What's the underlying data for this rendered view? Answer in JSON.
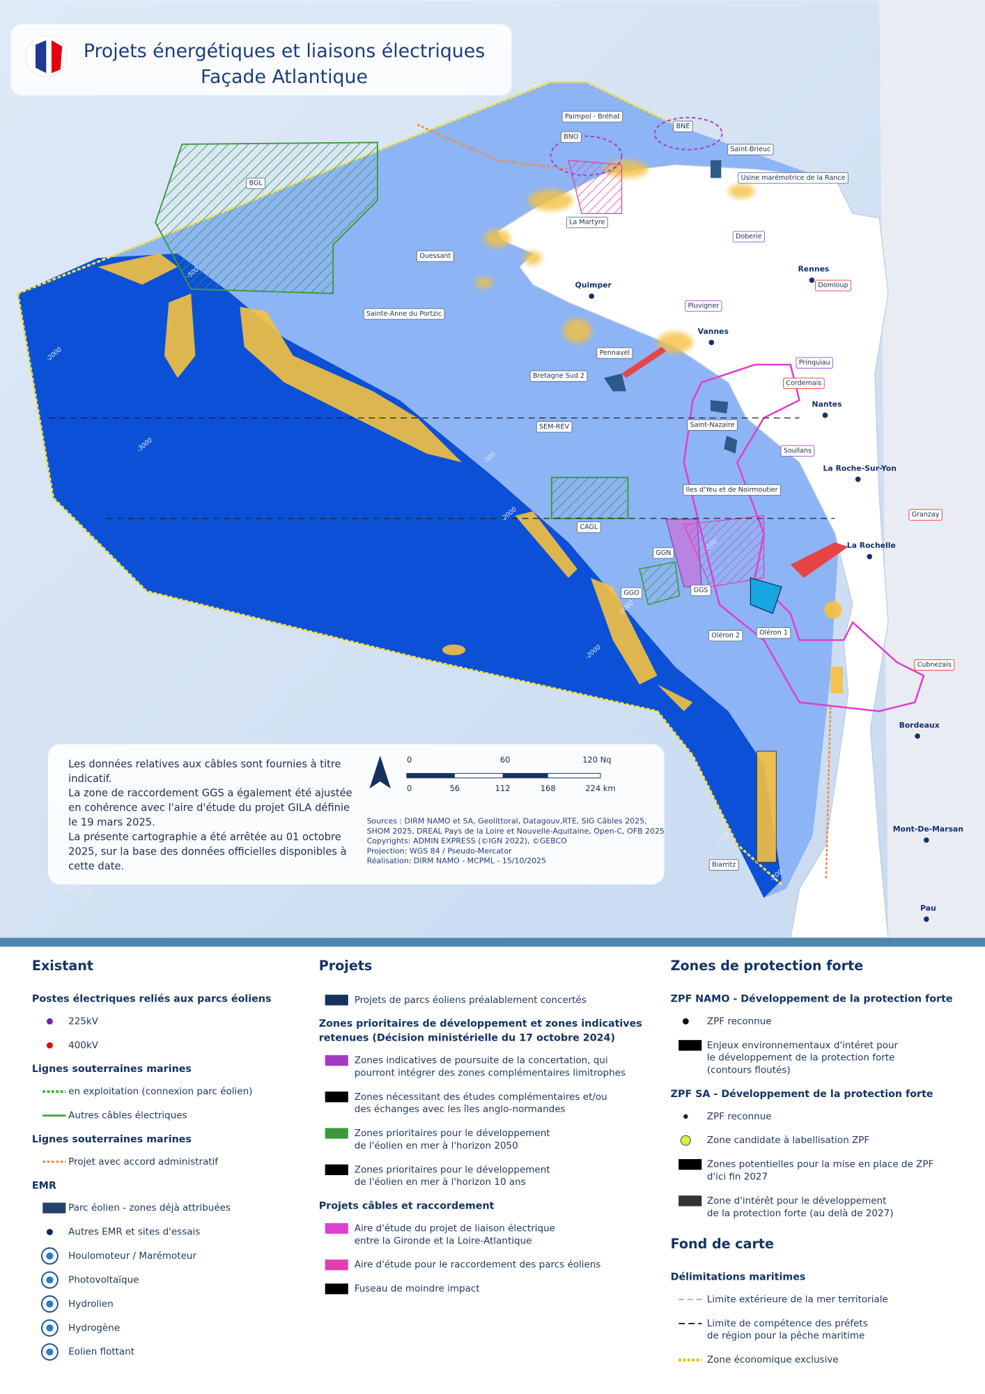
{
  "header": {
    "title": [
      "Projets énergétiques et liaisons électriques",
      "Façade Atlantique"
    ]
  },
  "map": {
    "labels": [
      "Paimpol - Bréhat",
      "BNE",
      "BNO",
      "Saint-Brieuc",
      "Usine marémotrice de la Rance",
      "BGL",
      "La Martyre",
      "Doberie",
      "Ouessant",
      "Rennes",
      "Domloup",
      "Quimper",
      "Pluvigner",
      "Sainte-Anne du Portzic",
      "Vannes",
      "Pennavel",
      "Prinquiau",
      "Bretagne Sud 2",
      "Cordemais",
      "Nantes",
      "SEM-REV",
      "Saint-Nazaire",
      "Soullans",
      "La Roche-Sur-Yon",
      "Iles d'Yeu et de Noirmoutier",
      "Granzay",
      "CAGL",
      "La Rochelle",
      "GGN",
      "GGS",
      "GGO",
      "Oléron 2",
      "Oléron 1",
      "Cubnezais",
      "Bordeaux",
      "Mont-De-Marsan",
      "Biarritz",
      "Pau"
    ],
    "depth_labels": [
      "-1000",
      "-200",
      "-500",
      "-2000",
      "-3000",
      "-500",
      "-2000",
      "-100",
      "-1000",
      "-2000",
      "-1000",
      "-200",
      "-1000",
      "-500"
    ],
    "scale": {
      "nautical": [
        "0",
        "60",
        "120 Nq"
      ],
      "km": [
        "0",
        "56",
        "112",
        "168",
        "224 km"
      ]
    },
    "note": [
      "Les données relatives aux câbles sont fournies à titre",
      "indicatif.",
      "La zone de raccordement GGS a également été ajustée",
      "en cohérence avec l'aire d'étude du projet GILA définie",
      "le 19 mars 2025.",
      "La présente cartographie a été arrêtée au 01 octobre",
      "2025, sur la base des données officielles disponibles à",
      "cette date."
    ],
    "sources": [
      "Sources : DIRM NAMO et SA, Geolittoral, Datagouv,RTE, SIG Câbles 2025,",
      "SHOM 2025, DREAL Pays de la Loire et Nouvelle-Aquitaine, Open-C, OFB 2025",
      "Copyrights: ADMIN EXPRESS (©IGN 2022), ©GEBCO",
      "Projection: WGS 84 / Pseudo-Mercator",
      "Réalisation: DIRM NAMO - MCPML - 15/10/2025"
    ]
  },
  "legend": {
    "existant": {
      "title": "Existant",
      "groups": [
        {
          "heading": [
            "Postes électriques reliés aux parcs éoliens"
          ],
          "items": [
            [
              "225kV"
            ],
            [
              "400kV"
            ]
          ]
        },
        {
          "heading": [
            "Lignes souterraines marines"
          ],
          "items": [
            [
              "en exploitation (connexion parc éolien)"
            ],
            [
              "Autres câbles électriques"
            ]
          ]
        },
        {
          "heading": [
            "Lignes souterraines marines"
          ],
          "items": [
            [
              "Projet avec accord administratif"
            ]
          ]
        },
        {
          "heading": [
            "EMR"
          ],
          "items": [
            [
              "Parc éolien - zones déjà attribuées"
            ],
            [
              "Autres EMR  et sites d'essais"
            ],
            [
              "Houlomoteur / Marémoteur"
            ],
            [
              "Photovoltaïque"
            ],
            [
              "Hydrolien"
            ],
            [
              "Hydrogène"
            ],
            [
              "Eolien flottant"
            ]
          ]
        }
      ]
    },
    "projets": {
      "title": "Projets",
      "groups": [
        {
          "items": [
            [
              "Projets de parcs éoliens préalablement concertés"
            ]
          ]
        },
        {
          "heading": [
            "Zones prioritaires de développement et zones indicatives",
            "retenues (Décision ministérielle du 17 octobre 2024)"
          ],
          "items": [
            [
              "Zones indicatives de poursuite de la concertation, qui",
              "pourront intégrer des zones complémentaires limitrophes"
            ],
            [
              "Zones nécessitant des études complémentaires et/ou",
              "des échanges avec les îles anglo-normandes"
            ],
            [
              "Zones prioritaires pour le développement",
              "de l'éolien en mer à l'horizon 2050"
            ],
            [
              "Zones prioritaires pour le développement",
              "de l'éolien en mer à l'horizon 10 ans"
            ]
          ]
        },
        {
          "heading": [
            "Projets câbles et raccordement"
          ],
          "items": [
            [
              "Aire d'étude du projet de liaison électrique",
              "entre la Gironde et la Loire-Atlantique"
            ],
            [
              "Aire d'étude pour le raccordement des parcs éoliens"
            ],
            [
              "Fuseau de moindre impact"
            ]
          ]
        }
      ]
    },
    "zones": {
      "title": "Zones de protection forte",
      "groups": [
        {
          "heading": [
            "ZPF NAMO - Développement de la protection forte"
          ],
          "items": [
            [
              "ZPF reconnue"
            ],
            [
              "Enjeux environnementaux d'intéret pour",
              "le développement de la protection forte",
              "(contours floutés)"
            ]
          ]
        },
        {
          "heading": [
            "ZPF SA - Développement de la protection forte"
          ],
          "items": [
            [
              "ZPF reconnue"
            ],
            [
              "Zone candidate à labellisation ZPF"
            ],
            [
              "Zones potentielles pour la mise en place de ZPF",
              "d'ici fin 2027"
            ],
            [
              "Zone d'intérêt pour le développement",
              "de la protection forte (au delà de 2027)"
            ]
          ]
        }
      ]
    },
    "fond": {
      "title": "Fond de carte",
      "groups": [
        {
          "heading": [
            "Délimitations maritimes"
          ],
          "items": [
            [
              "Limite extérieure de la mer territoriale"
            ],
            [
              "Limite de compétence des préfets",
              "de région pour la pêche maritime"
            ],
            [
              "Zone économique exclusive"
            ]
          ]
        }
      ]
    }
  }
}
